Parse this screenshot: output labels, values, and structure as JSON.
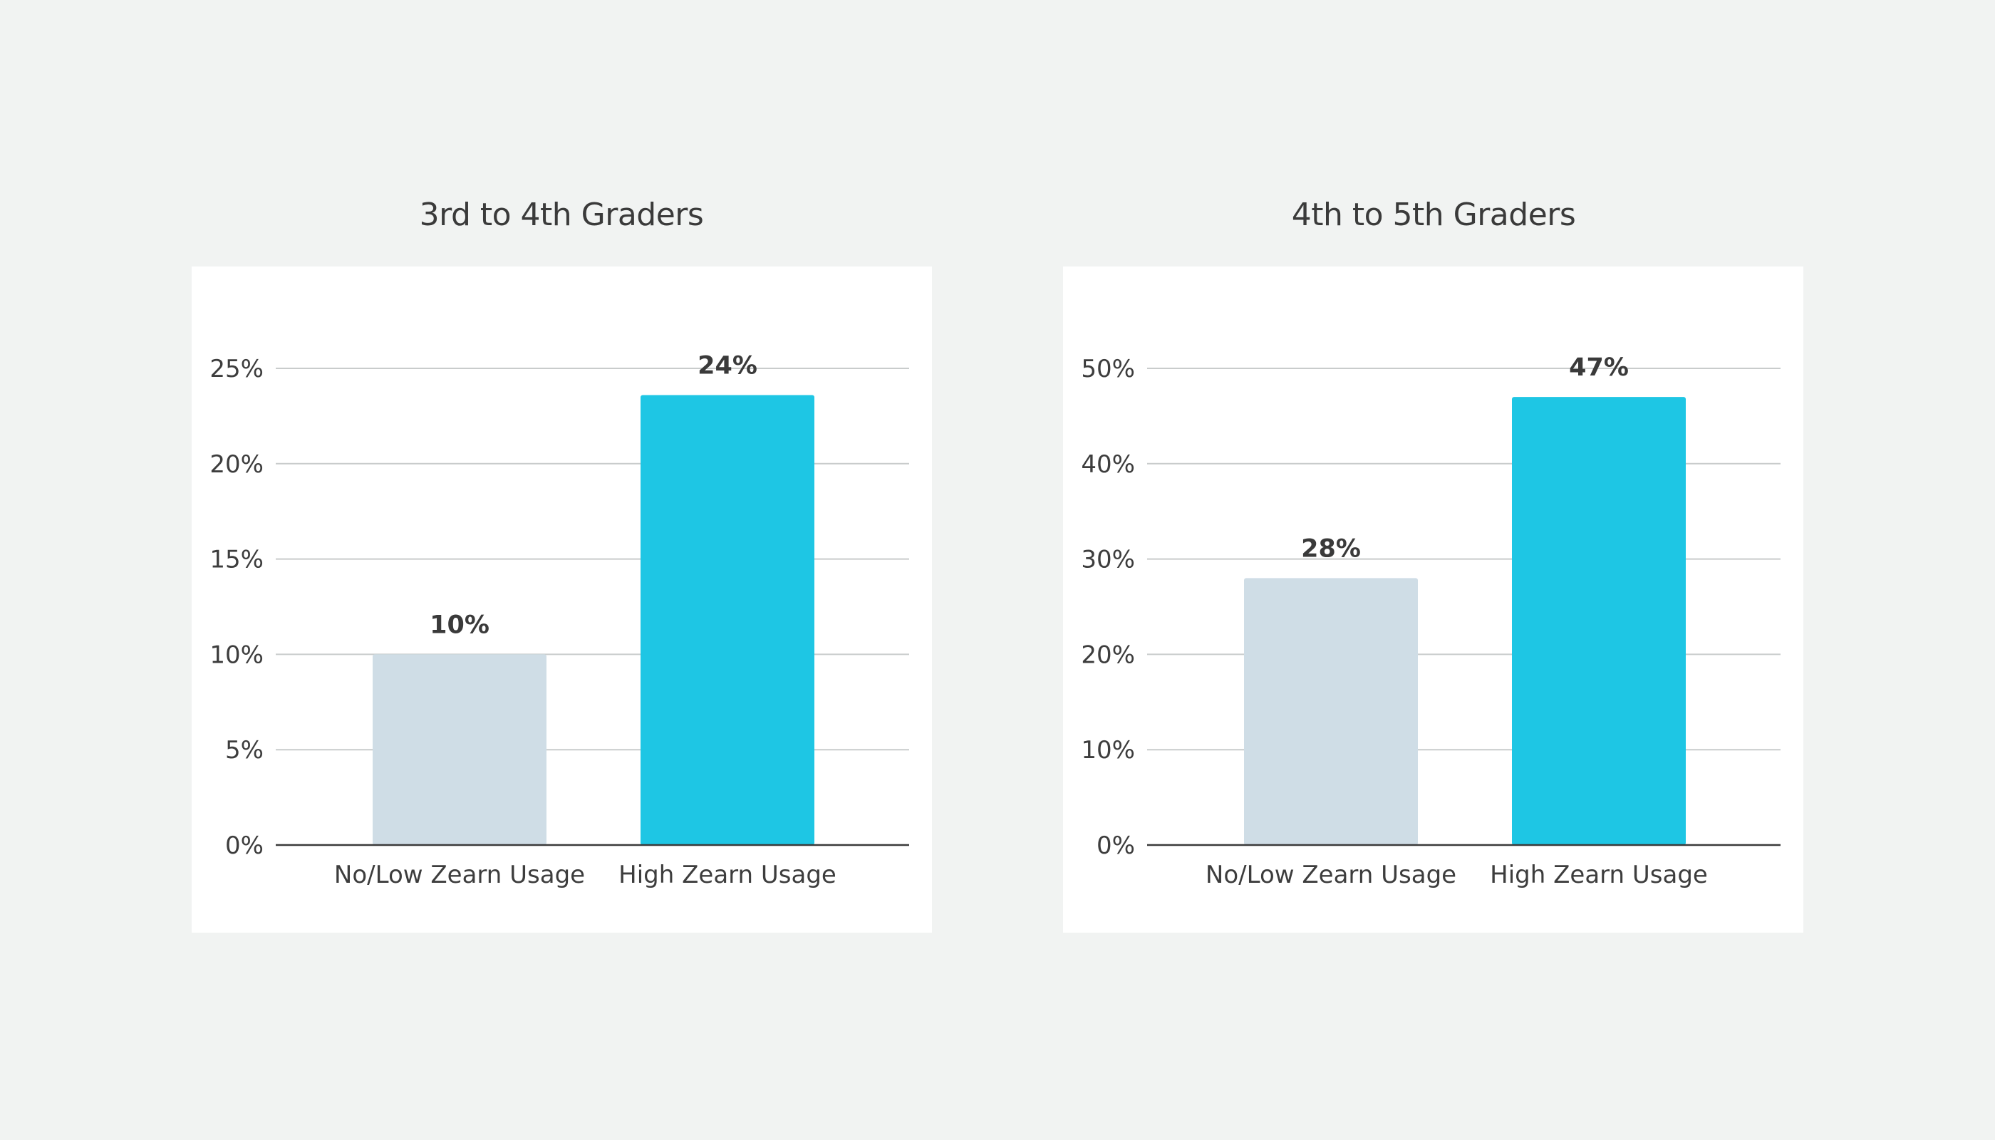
{
  "chart_data": [
    {
      "type": "bar",
      "title": "3rd to 4th Graders",
      "categories": [
        "No/Low Zearn Usage",
        "High Zearn Usage"
      ],
      "values": [
        10,
        23.6
      ],
      "value_labels": [
        "10%",
        "24%"
      ],
      "ylim": [
        0,
        25
      ],
      "yticks": [
        0,
        5,
        10,
        15,
        20,
        25
      ],
      "ytick_labels": [
        "0%",
        "5%",
        "10%",
        "15%",
        "20%",
        "25%"
      ],
      "colors": [
        "#cfdde6",
        "#1ec6e4"
      ],
      "grid": true,
      "xlabel": "",
      "ylabel": ""
    },
    {
      "type": "bar",
      "title": "4th to 5th Graders",
      "categories": [
        "No/Low Zearn Usage",
        "High Zearn Usage"
      ],
      "values": [
        28,
        47
      ],
      "value_labels": [
        "28%",
        "47%"
      ],
      "ylim": [
        0,
        50
      ],
      "yticks": [
        0,
        10,
        20,
        30,
        40,
        50
      ],
      "ytick_labels": [
        "0%",
        "10%",
        "20%",
        "30%",
        "40%",
        "50%"
      ],
      "colors": [
        "#cfdde6",
        "#1ec6e4"
      ],
      "grid": true,
      "xlabel": "",
      "ylabel": ""
    }
  ],
  "style": {
    "background": "#f1f3f2",
    "card": "#ffffff",
    "gridline": "#c9cccc",
    "axis": "#3a3a3a"
  }
}
